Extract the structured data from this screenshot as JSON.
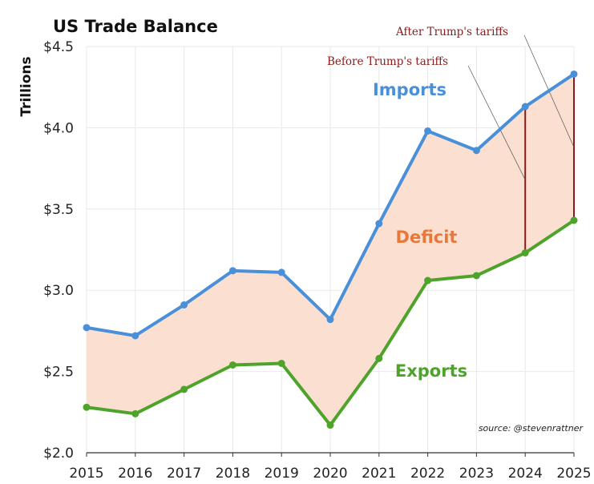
{
  "chart_data": {
    "type": "line",
    "title": "US Trade Balance",
    "ylabel": "Trillions",
    "xlabel": "",
    "x": [
      "2015",
      "2016",
      "2017",
      "2018",
      "2019",
      "2020",
      "2021",
      "2022",
      "2023",
      "2024",
      "2025"
    ],
    "y_ticks": [
      "$2.0",
      "$2.5",
      "$3.0",
      "$3.5",
      "$4.0",
      "$4.5"
    ],
    "ylim": [
      2.0,
      4.5
    ],
    "grid": true,
    "series": [
      {
        "name": "Imports",
        "color": "#4a90d9",
        "values": [
          2.77,
          2.72,
          2.91,
          3.12,
          3.11,
          2.82,
          3.41,
          3.98,
          3.86,
          4.13,
          4.33
        ]
      },
      {
        "name": "Exports",
        "color": "#4ea32a",
        "values": [
          2.28,
          2.24,
          2.39,
          2.54,
          2.55,
          2.17,
          2.58,
          3.06,
          3.09,
          3.23,
          3.43
        ]
      }
    ],
    "deficit": {
      "label": "Deficit",
      "fill_color": "#fbe0d2",
      "label_color": "#e8773a"
    },
    "annotations": [
      {
        "text": "Before Trump's tariffs",
        "x": "2024",
        "color": "#8b1a1a"
      },
      {
        "text": "After Trump's tariffs",
        "x": "2025",
        "color": "#8b1a1a"
      }
    ],
    "source": "source: @stevenrattner"
  }
}
